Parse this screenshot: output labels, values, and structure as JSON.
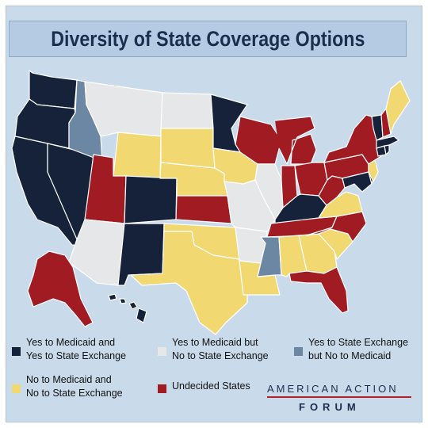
{
  "title": "Diversity of State Coverage Options",
  "colors": {
    "yes_yes": "#16213a",
    "yes_no": "#e6e7e9",
    "exchange_only": "#6c87a3",
    "no_no": "#f2d870",
    "undecided": "#a11b22",
    "background": "#c9daea"
  },
  "legend": [
    {
      "category": "yes_yes",
      "line1": "Yes to Medicaid and",
      "line2": "Yes to State Exchange"
    },
    {
      "category": "yes_no",
      "line1": "Yes to Medicaid but",
      "line2": "No to State Exchange"
    },
    {
      "category": "exchange_only",
      "line1": "Yes to State Exchange",
      "line2": "but No to Medicaid"
    },
    {
      "category": "no_no",
      "line1": "No to Medicaid and",
      "line2": "No to State Exchange"
    },
    {
      "category": "undecided",
      "line1": "Undecided States",
      "line2": ""
    }
  ],
  "states": [
    {
      "name": "Washington",
      "category": "yes_yes"
    },
    {
      "name": "Oregon",
      "category": "yes_yes"
    },
    {
      "name": "California",
      "category": "yes_yes"
    },
    {
      "name": "Nevada",
      "category": "yes_yes"
    },
    {
      "name": "Idaho",
      "category": "exchange_only"
    },
    {
      "name": "Montana",
      "category": "yes_no"
    },
    {
      "name": "Wyoming",
      "category": "no_no"
    },
    {
      "name": "Utah",
      "category": "undecided"
    },
    {
      "name": "Arizona",
      "category": "yes_no"
    },
    {
      "name": "Colorado",
      "category": "yes_yes"
    },
    {
      "name": "New Mexico",
      "category": "yes_yes"
    },
    {
      "name": "North Dakota",
      "category": "yes_no"
    },
    {
      "name": "South Dakota",
      "category": "no_no"
    },
    {
      "name": "Nebraska",
      "category": "no_no"
    },
    {
      "name": "Kansas",
      "category": "undecided"
    },
    {
      "name": "Oklahoma",
      "category": "no_no"
    },
    {
      "name": "Texas",
      "category": "no_no"
    },
    {
      "name": "Minnesota",
      "category": "yes_yes"
    },
    {
      "name": "Iowa",
      "category": "no_no"
    },
    {
      "name": "Missouri",
      "category": "yes_no"
    },
    {
      "name": "Arkansas",
      "category": "yes_no"
    },
    {
      "name": "Louisiana",
      "category": "no_no"
    },
    {
      "name": "Wisconsin",
      "category": "undecided"
    },
    {
      "name": "Illinois",
      "category": "yes_no"
    },
    {
      "name": "Michigan",
      "category": "undecided"
    },
    {
      "name": "Indiana",
      "category": "undecided"
    },
    {
      "name": "Ohio",
      "category": "undecided"
    },
    {
      "name": "Kentucky",
      "category": "yes_yes"
    },
    {
      "name": "Tennessee",
      "category": "undecided"
    },
    {
      "name": "Mississippi",
      "category": "exchange_only"
    },
    {
      "name": "Alabama",
      "category": "no_no"
    },
    {
      "name": "Georgia",
      "category": "no_no"
    },
    {
      "name": "Florida",
      "category": "undecided"
    },
    {
      "name": "South Carolina",
      "category": "no_no"
    },
    {
      "name": "North Carolina",
      "category": "undecided"
    },
    {
      "name": "Virginia",
      "category": "no_no"
    },
    {
      "name": "West Virginia",
      "category": "undecided"
    },
    {
      "name": "Pennsylvania",
      "category": "undecided"
    },
    {
      "name": "New York",
      "category": "undecided"
    },
    {
      "name": "Maryland",
      "category": "yes_yes"
    },
    {
      "name": "Delaware",
      "category": "yes_yes"
    },
    {
      "name": "New Jersey",
      "category": "no_no"
    },
    {
      "name": "Connecticut",
      "category": "yes_yes"
    },
    {
      "name": "Rhode Island",
      "category": "yes_yes"
    },
    {
      "name": "Massachusetts",
      "category": "yes_yes"
    },
    {
      "name": "Vermont",
      "category": "yes_yes"
    },
    {
      "name": "New Hampshire",
      "category": "undecided"
    },
    {
      "name": "Maine",
      "category": "no_no"
    },
    {
      "name": "Alaska",
      "category": "undecided"
    },
    {
      "name": "Hawaii",
      "category": "yes_yes"
    }
  ],
  "brand": {
    "top": "AMERICAN ACTION",
    "bottom": "FORUM"
  }
}
